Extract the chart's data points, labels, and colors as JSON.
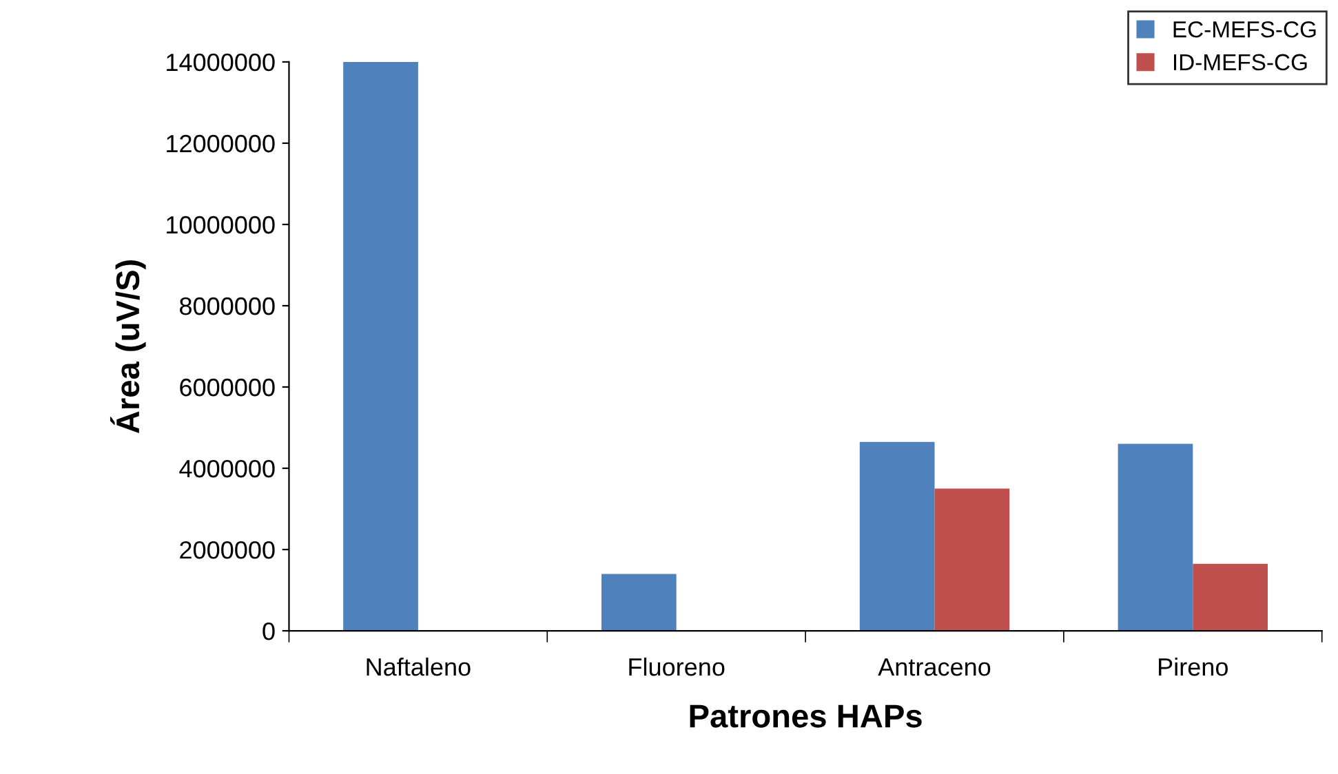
{
  "chart_data": {
    "type": "bar",
    "xlabel": "Patrones HAPs",
    "ylabel": "Área (uV/S)",
    "categories": [
      "Naftaleno",
      "Fluoreno",
      "Antraceno",
      "Pireno"
    ],
    "series": [
      {
        "name": "EC-MEFS-CG",
        "color": "#4f81bd",
        "values": [
          14000000,
          1400000,
          4650000,
          4600000
        ]
      },
      {
        "name": "ID-MEFS-CG",
        "color": "#c0504d",
        "values": [
          0,
          0,
          3500000,
          1650000
        ]
      }
    ],
    "ylim": [
      0,
      14000000
    ],
    "yticks": [
      0,
      2000000,
      4000000,
      6000000,
      8000000,
      10000000,
      12000000,
      14000000
    ],
    "grid": false,
    "legend": "top right"
  }
}
